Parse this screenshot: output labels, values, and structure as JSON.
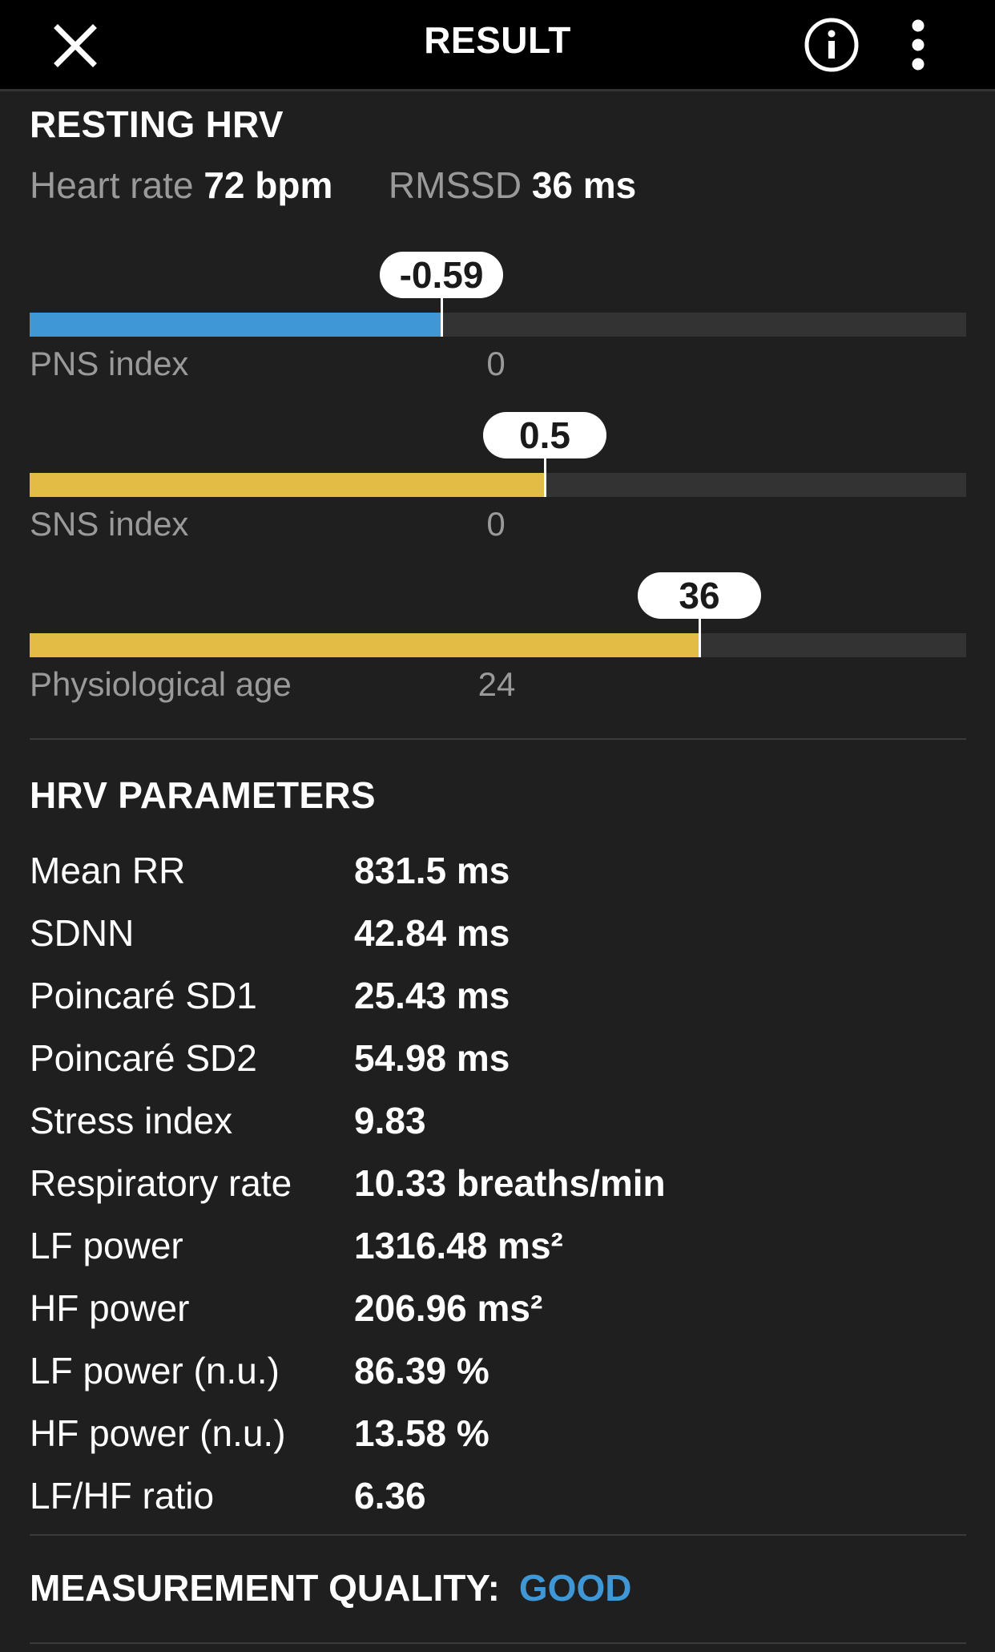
{
  "header": {
    "title": "RESULT",
    "close_icon": "close-icon",
    "info_icon": "info-icon",
    "more_icon": "more-vert-icon"
  },
  "resting": {
    "title": "RESTING HRV",
    "heart_rate_label": "Heart rate",
    "heart_rate_value": "72 bpm",
    "rmssd_label": "RMSSD",
    "rmssd_value": "36 ms"
  },
  "gauges": [
    {
      "label": "PNS index",
      "value": "-0.59",
      "center_label": "0",
      "fraction": 0.44,
      "color": "#3f97d6"
    },
    {
      "label": "SNS index",
      "value": "0.5",
      "center_label": "0",
      "fraction": 0.55,
      "color": "#e3bc45"
    },
    {
      "label": "Physiological age",
      "value": "36",
      "center_label": "24",
      "fraction": 0.715,
      "color": "#e3bc45"
    }
  ],
  "parameters": {
    "title": "HRV PARAMETERS",
    "rows": [
      {
        "label": "Mean RR",
        "value": "831.5 ms"
      },
      {
        "label": "SDNN",
        "value": "42.84 ms"
      },
      {
        "label": "Poincaré SD1",
        "value": "25.43 ms"
      },
      {
        "label": "Poincaré SD2",
        "value": "54.98 ms"
      },
      {
        "label": "Stress index",
        "value": "9.83"
      },
      {
        "label": "Respiratory rate",
        "value": "10.33 breaths/min"
      },
      {
        "label": "LF power",
        "value": "1316.48 ms²"
      },
      {
        "label": "HF power",
        "value": "206.96 ms²"
      },
      {
        "label": "LF power (n.u.)",
        "value": "86.39 %"
      },
      {
        "label": "HF power (n.u.)",
        "value": "13.58 %"
      },
      {
        "label": "LF/HF ratio",
        "value": "6.36"
      }
    ]
  },
  "quality": {
    "label": "MEASUREMENT QUALITY:",
    "value": "GOOD",
    "value_color": "#3f97d6"
  }
}
